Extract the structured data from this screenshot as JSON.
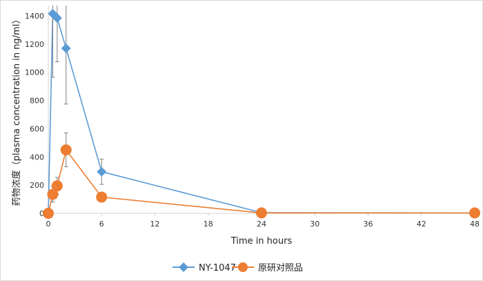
{
  "chart_data": {
    "type": "line",
    "title": "",
    "xlabel": "Time in hours",
    "ylabel": "药物浓度（plasma concentration in ng/ml）",
    "xlim": [
      0,
      48
    ],
    "ylim": [
      0,
      1400
    ],
    "xticks": [
      0,
      6,
      12,
      18,
      24,
      30,
      36,
      42,
      48
    ],
    "yticks": [
      0,
      200,
      400,
      600,
      800,
      1000,
      1200,
      1400
    ],
    "grid": false,
    "legend_position": "bottom",
    "series": [
      {
        "name": "NY-1047",
        "color": "#5b9bd5",
        "marker": "diamond",
        "x": [
          0,
          0.5,
          1,
          2,
          6,
          24,
          48
        ],
        "y": [
          0,
          1415,
          1385,
          1170,
          295,
          5,
          3
        ],
        "error": [
          0,
          450,
          310,
          395,
          90,
          0,
          0
        ]
      },
      {
        "name": "原研对照品",
        "color": "#ed7d31",
        "marker": "circle",
        "x": [
          0,
          0.5,
          1,
          2,
          6,
          24,
          48
        ],
        "y": [
          0,
          135,
          195,
          450,
          115,
          3,
          3
        ],
        "error": [
          0,
          55,
          60,
          120,
          0,
          0,
          0
        ]
      }
    ]
  }
}
